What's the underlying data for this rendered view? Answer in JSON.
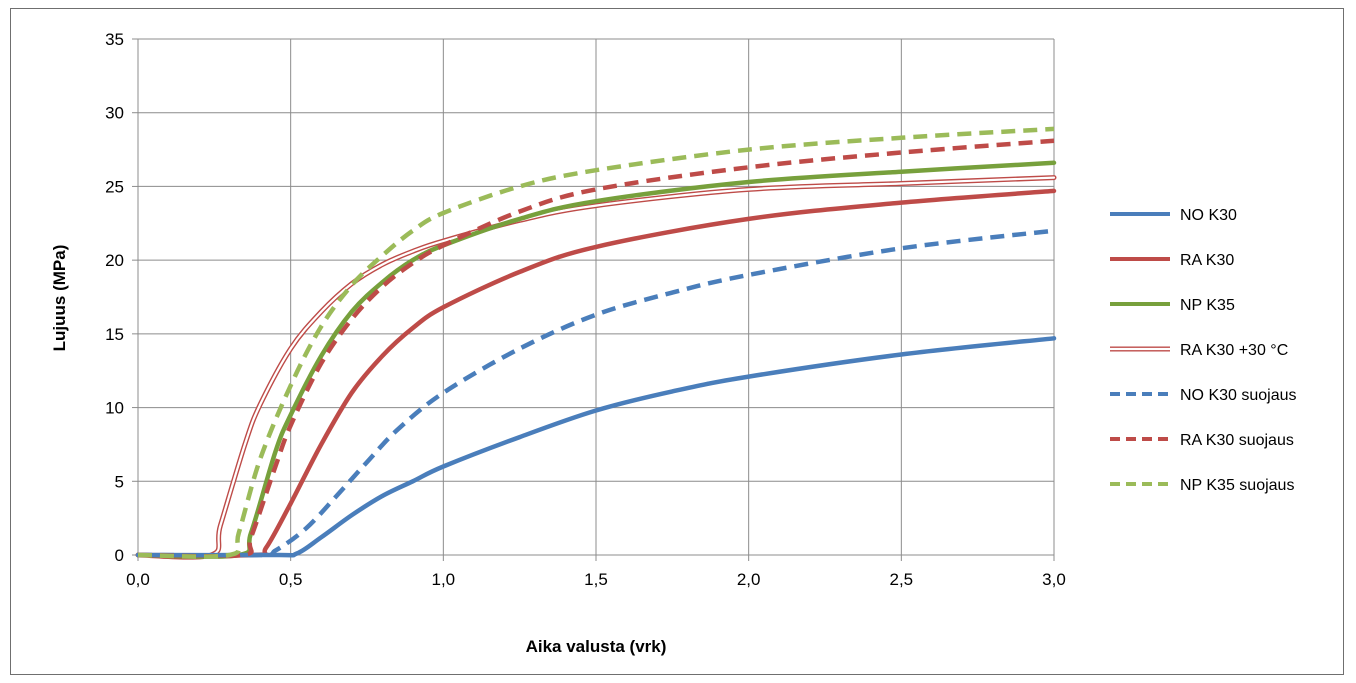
{
  "chart_data": {
    "type": "line",
    "title": "",
    "xlabel": "Aika valusta (vrk)",
    "ylabel": "Lujuus (MPa)",
    "xlim": [
      0,
      3
    ],
    "ylim": [
      0,
      35
    ],
    "grid": true,
    "legend_position": "right",
    "x_ticks": [
      "0,0",
      "0,5",
      "1,0",
      "1,5",
      "2,0",
      "2,5",
      "3,0"
    ],
    "y_ticks": [
      "0",
      "5",
      "10",
      "15",
      "20",
      "25",
      "30",
      "35"
    ],
    "series": [
      {
        "name": "NO K30",
        "color": "#4a7ebb",
        "style": "solid",
        "x": [
          0,
          0.45,
          0.52,
          0.6,
          0.7,
          0.8,
          0.9,
          1.0,
          1.25,
          1.5,
          1.75,
          2.0,
          2.5,
          3.0
        ],
        "y": [
          0,
          0,
          0.1,
          1.2,
          2.7,
          4.0,
          5.0,
          6.0,
          8.0,
          9.8,
          11.1,
          12.1,
          13.6,
          14.7
        ]
      },
      {
        "name": "RA K30",
        "color": "#be4b48",
        "style": "solid",
        "x": [
          0,
          0.38,
          0.42,
          0.5,
          0.6,
          0.7,
          0.8,
          0.9,
          1.0,
          1.25,
          1.5,
          2.0,
          2.5,
          3.0
        ],
        "y": [
          0,
          0,
          0.5,
          3.5,
          7.5,
          11.0,
          13.5,
          15.4,
          16.8,
          19.2,
          20.9,
          22.8,
          23.9,
          24.7
        ]
      },
      {
        "name": "NP K35",
        "color": "#77a03c",
        "style": "solid",
        "x": [
          0,
          0.33,
          0.37,
          0.45,
          0.5,
          0.6,
          0.7,
          0.8,
          0.9,
          1.0,
          1.25,
          1.5,
          2.0,
          2.5,
          3.0
        ],
        "y": [
          0,
          0,
          1.5,
          7.0,
          9.5,
          13.5,
          16.5,
          18.5,
          20.0,
          21.0,
          22.8,
          24.0,
          25.3,
          26.0,
          26.6
        ]
      },
      {
        "name": "RA K30 +30 °C",
        "color": "#be4b48",
        "style": "double",
        "x": [
          0,
          0.24,
          0.27,
          0.35,
          0.4,
          0.5,
          0.6,
          0.7,
          0.8,
          0.9,
          1.0,
          1.25,
          1.5,
          2.0,
          2.5,
          3.0
        ],
        "y": [
          0,
          0,
          2.0,
          7.5,
          10.2,
          14.0,
          16.5,
          18.4,
          19.7,
          20.6,
          21.3,
          22.7,
          23.7,
          24.8,
          25.2,
          25.6
        ]
      },
      {
        "name": "NO K30 suojaus",
        "color": "#4a7ebb",
        "style": "dashed",
        "x": [
          0,
          0.4,
          0.45,
          0.55,
          0.65,
          0.75,
          0.85,
          1.0,
          1.25,
          1.5,
          1.75,
          2.0,
          2.5,
          3.0
        ],
        "y": [
          0,
          0,
          0.3,
          1.8,
          4.0,
          6.3,
          8.5,
          11.0,
          14.0,
          16.3,
          17.8,
          19.0,
          20.8,
          22.0
        ]
      },
      {
        "name": "RA K30 suojaus",
        "color": "#be4b48",
        "style": "dashed",
        "x": [
          0,
          0.34,
          0.37,
          0.45,
          0.5,
          0.6,
          0.7,
          0.8,
          0.9,
          1.0,
          1.25,
          1.5,
          2.0,
          2.5,
          3.0
        ],
        "y": [
          0,
          0,
          1.2,
          6.0,
          8.8,
          13.0,
          16.0,
          18.2,
          19.8,
          21.0,
          23.3,
          24.8,
          26.3,
          27.3,
          28.1
        ]
      },
      {
        "name": "NP K35 suojaus",
        "color": "#9bbb59",
        "style": "dashed",
        "x": [
          0,
          0.3,
          0.33,
          0.4,
          0.5,
          0.6,
          0.7,
          0.8,
          0.9,
          1.0,
          1.25,
          1.5,
          2.0,
          2.5,
          3.0
        ],
        "y": [
          0,
          0,
          1.5,
          6.5,
          11.5,
          15.5,
          18.3,
          20.3,
          22.0,
          23.2,
          25.0,
          26.1,
          27.5,
          28.3,
          28.9
        ]
      }
    ]
  }
}
